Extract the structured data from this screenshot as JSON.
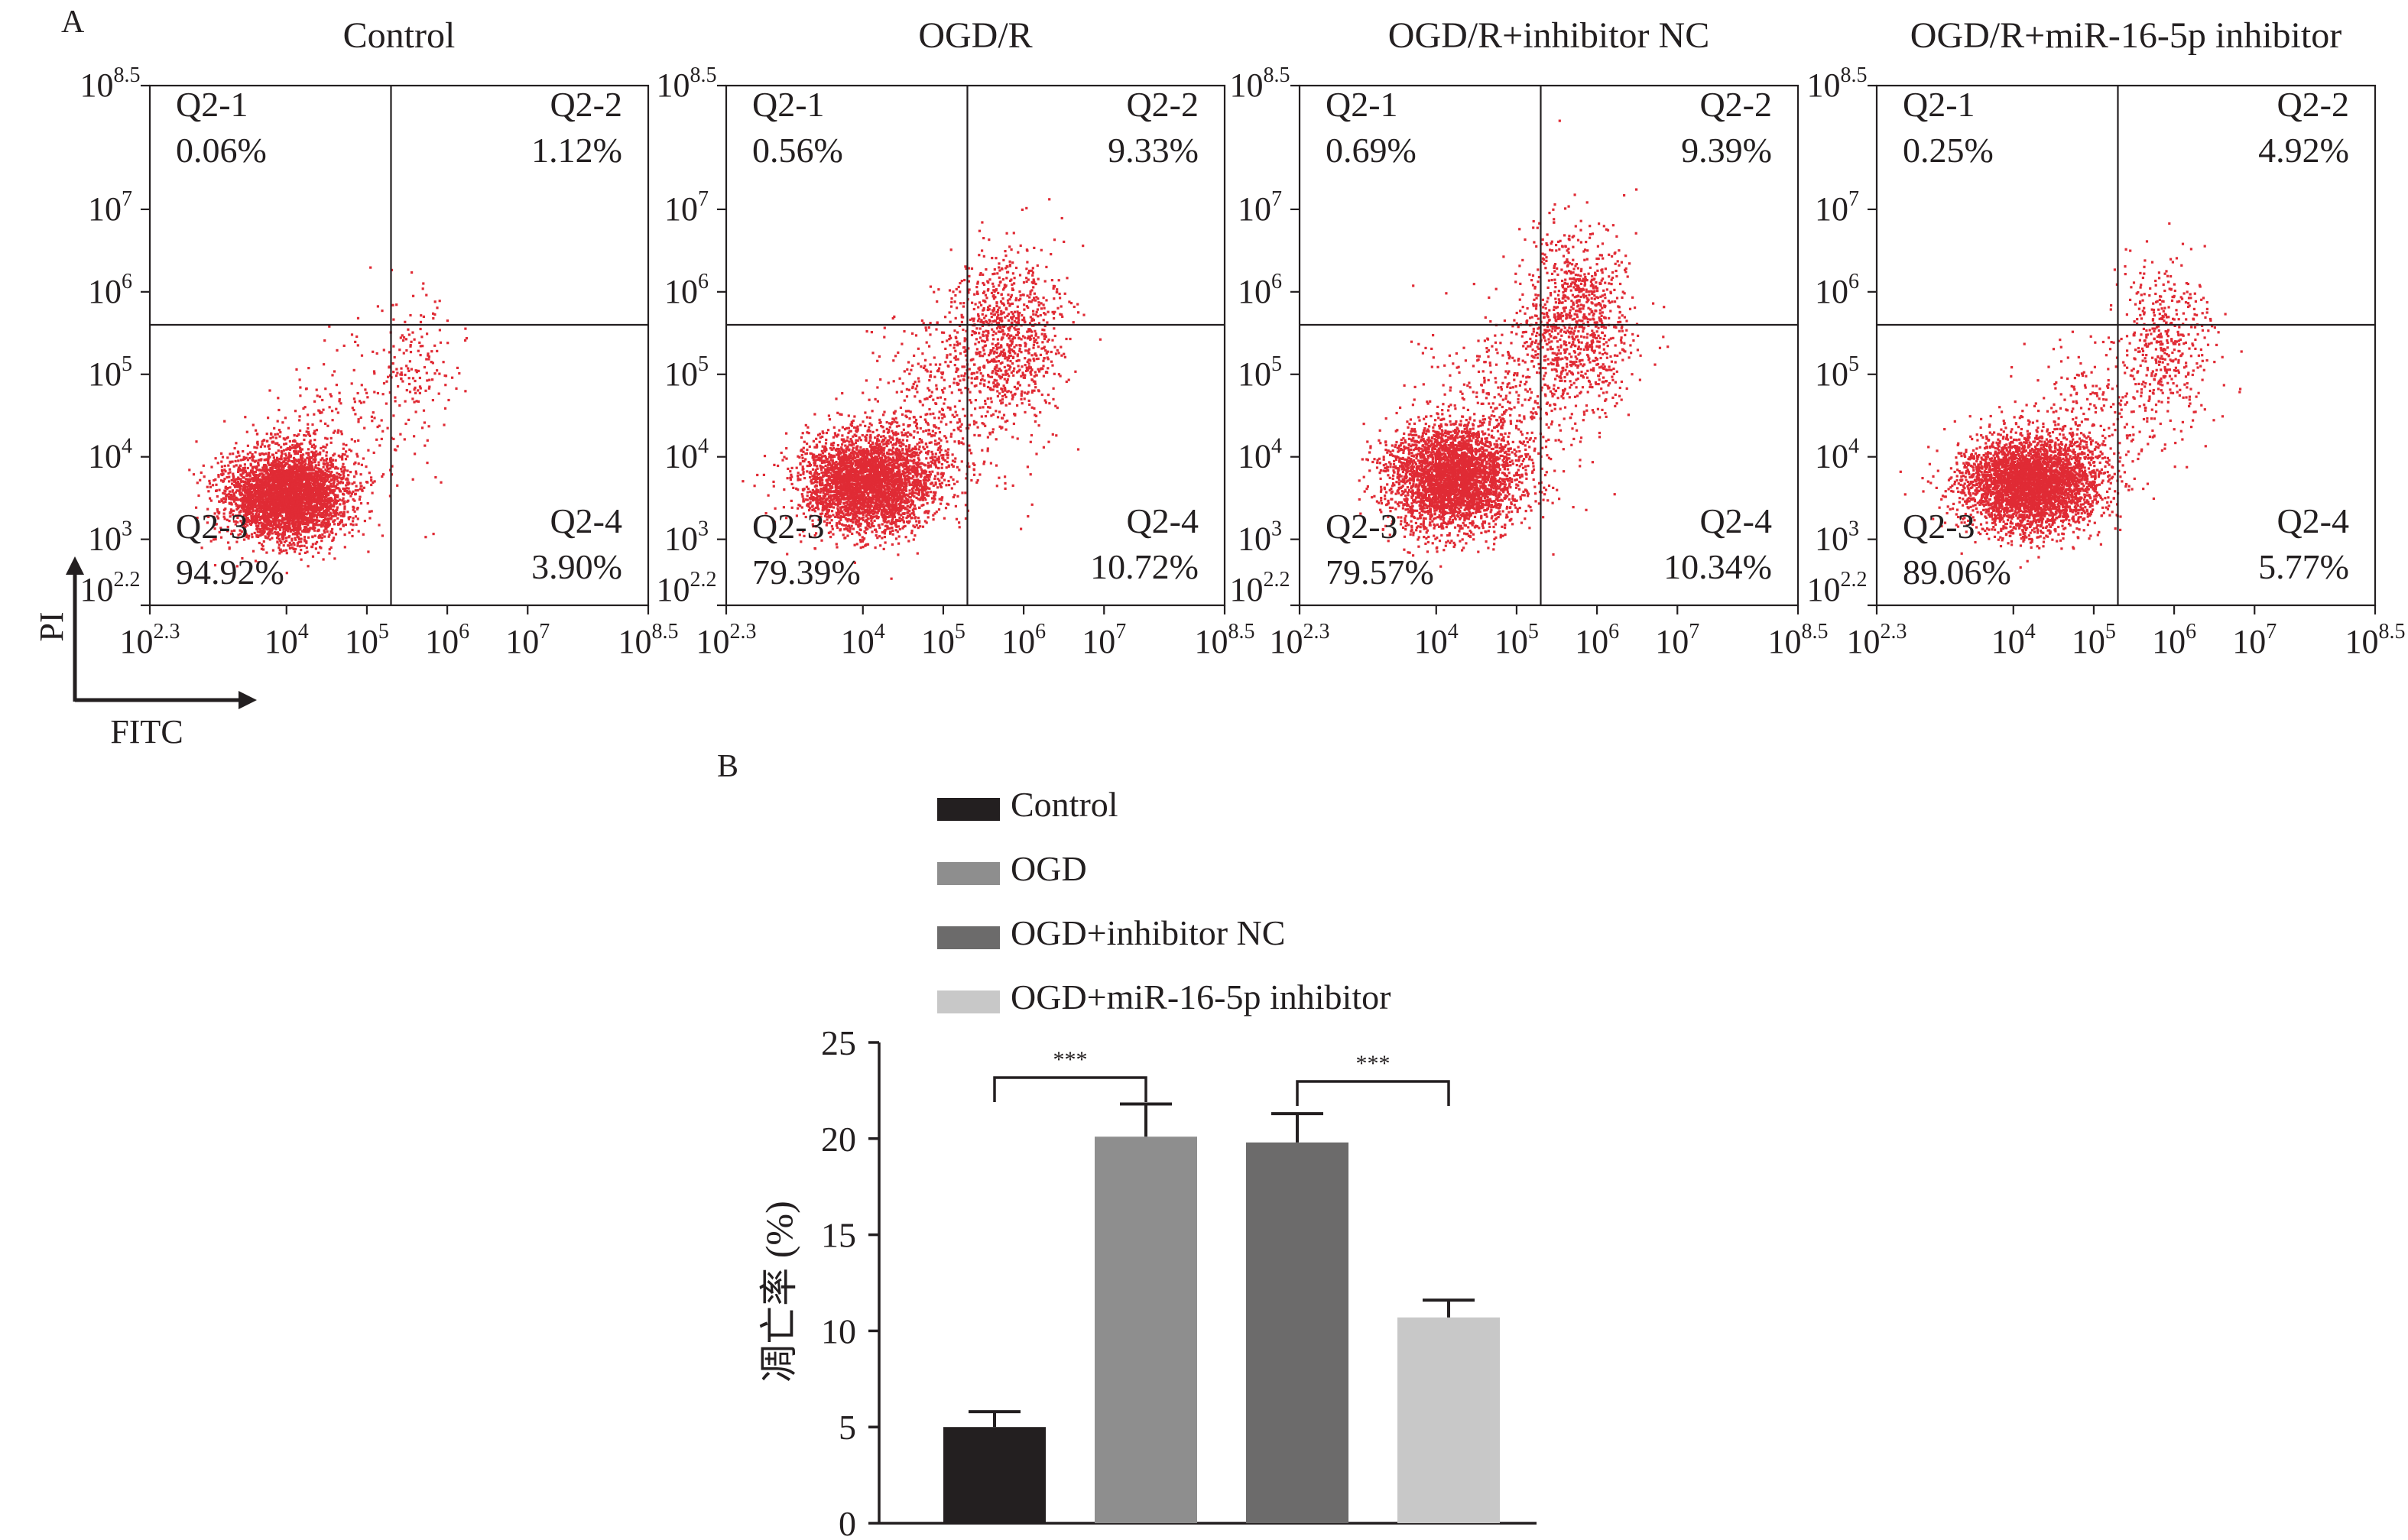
{
  "panel_labels": {
    "a": "A",
    "b": "B"
  },
  "flow_axes": {
    "x_label": "FITC",
    "y_label": "PI",
    "x_ticks": [
      {
        "base": "10",
        "exp": "2.3"
      },
      {
        "base": "10",
        "exp": "4"
      },
      {
        "base": "10",
        "exp": "5"
      },
      {
        "base": "10",
        "exp": "6"
      },
      {
        "base": "10",
        "exp": "7"
      },
      {
        "base": "10",
        "exp": "8.5"
      }
    ],
    "y_ticks": [
      {
        "base": "10",
        "exp": "2.2"
      },
      {
        "base": "10",
        "exp": "3"
      },
      {
        "base": "10",
        "exp": "4"
      },
      {
        "base": "10",
        "exp": "5"
      },
      {
        "base": "10",
        "exp": "6"
      },
      {
        "base": "10",
        "exp": "7"
      },
      {
        "base": "10",
        "exp": "8.5"
      }
    ]
  },
  "colors": {
    "events": "#e02b35",
    "axis": "#231f20",
    "bar_control": "#231f20",
    "bar_ogd": "#8e8e8e",
    "bar_nc": "#6c6b6b",
    "bar_inhibitor": "#c8c8c8"
  },
  "chart_data": [
    {
      "type": "scatter",
      "title": "Control",
      "x_scale": "log10",
      "y_scale": "log10",
      "xlim": [
        2.3,
        8.5
      ],
      "ylim": [
        2.2,
        8.5
      ],
      "gate": {
        "x": 5.3,
        "y": 5.6
      },
      "quadrants": [
        {
          "name": "Q2-1",
          "value": "0.06%"
        },
        {
          "name": "Q2-2",
          "value": "1.12%"
        },
        {
          "name": "Q2-3",
          "value": "94.92%"
        },
        {
          "name": "Q2-4",
          "value": "3.90%"
        }
      ],
      "populations": [
        {
          "cx": 4.0,
          "cy": 3.55,
          "sx": 0.36,
          "sy": 0.26,
          "n": 4200
        },
        {
          "cx": 5.6,
          "cy": 5.2,
          "sx": 0.25,
          "sy": 0.45,
          "n": 140
        },
        {
          "cx": 4.8,
          "cy": 4.4,
          "sx": 0.5,
          "sy": 0.5,
          "n": 200
        }
      ]
    },
    {
      "type": "scatter",
      "title": "OGD/R",
      "x_scale": "log10",
      "y_scale": "log10",
      "xlim": [
        2.3,
        8.5
      ],
      "ylim": [
        2.2,
        8.5
      ],
      "gate": {
        "x": 5.3,
        "y": 5.6
      },
      "quadrants": [
        {
          "name": "Q2-1",
          "value": "0.56%"
        },
        {
          "name": "Q2-2",
          "value": "9.33%"
        },
        {
          "name": "Q2-3",
          "value": "79.39%"
        },
        {
          "name": "Q2-4",
          "value": "10.72%"
        }
      ],
      "populations": [
        {
          "cx": 4.05,
          "cy": 3.7,
          "sx": 0.4,
          "sy": 0.28,
          "n": 3600
        },
        {
          "cx": 5.8,
          "cy": 5.5,
          "sx": 0.35,
          "sy": 0.5,
          "n": 900
        },
        {
          "cx": 5.0,
          "cy": 4.6,
          "sx": 0.45,
          "sy": 0.55,
          "n": 450
        }
      ]
    },
    {
      "type": "scatter",
      "title": "OGD/R+inhibitor NC",
      "x_scale": "log10",
      "y_scale": "log10",
      "xlim": [
        2.3,
        8.5
      ],
      "ylim": [
        2.2,
        8.5
      ],
      "gate": {
        "x": 5.3,
        "y": 5.6
      },
      "quadrants": [
        {
          "name": "Q2-1",
          "value": "0.69%"
        },
        {
          "name": "Q2-2",
          "value": "9.39%"
        },
        {
          "name": "Q2-3",
          "value": "79.57%"
        },
        {
          "name": "Q2-4",
          "value": "10.34%"
        }
      ],
      "populations": [
        {
          "cx": 4.2,
          "cy": 3.75,
          "sx": 0.4,
          "sy": 0.3,
          "n": 3500
        },
        {
          "cx": 5.75,
          "cy": 5.65,
          "sx": 0.35,
          "sy": 0.55,
          "n": 950
        },
        {
          "cx": 4.9,
          "cy": 4.7,
          "sx": 0.5,
          "sy": 0.55,
          "n": 420
        }
      ]
    },
    {
      "type": "scatter",
      "title": "OGD/R+miR-16-5p inhibitor",
      "x_scale": "log10",
      "y_scale": "log10",
      "xlim": [
        2.3,
        8.5
      ],
      "ylim": [
        2.2,
        8.5
      ],
      "gate": {
        "x": 5.3,
        "y": 5.6
      },
      "quadrants": [
        {
          "name": "Q2-1",
          "value": "0.25%"
        },
        {
          "name": "Q2-2",
          "value": "4.92%"
        },
        {
          "name": "Q2-3",
          "value": "89.06%"
        },
        {
          "name": "Q2-4",
          "value": "5.77%"
        }
      ],
      "populations": [
        {
          "cx": 4.2,
          "cy": 3.7,
          "sx": 0.42,
          "sy": 0.27,
          "n": 4000
        },
        {
          "cx": 5.85,
          "cy": 5.4,
          "sx": 0.3,
          "sy": 0.5,
          "n": 450
        },
        {
          "cx": 5.0,
          "cy": 4.5,
          "sx": 0.45,
          "sy": 0.45,
          "n": 220
        }
      ]
    },
    {
      "type": "bar",
      "categories": [
        "Control",
        "OGD",
        "OGD+inhibitor NC",
        "OGD+miR-16-5p inhibitor"
      ],
      "values": [
        5.0,
        20.1,
        19.8,
        10.7
      ],
      "errors": [
        0.8,
        1.7,
        1.5,
        0.9
      ],
      "colors": [
        "#231f20",
        "#8e8e8e",
        "#6c6b6b",
        "#c8c8c8"
      ],
      "ylabel": "凋亡率 (%)",
      "ylim": [
        0,
        25
      ],
      "yticks": [
        0,
        5,
        10,
        15,
        20,
        25
      ],
      "significance": [
        {
          "from": 0,
          "to": 1,
          "label": "***"
        },
        {
          "from": 2,
          "to": 3,
          "label": "***"
        }
      ]
    }
  ]
}
